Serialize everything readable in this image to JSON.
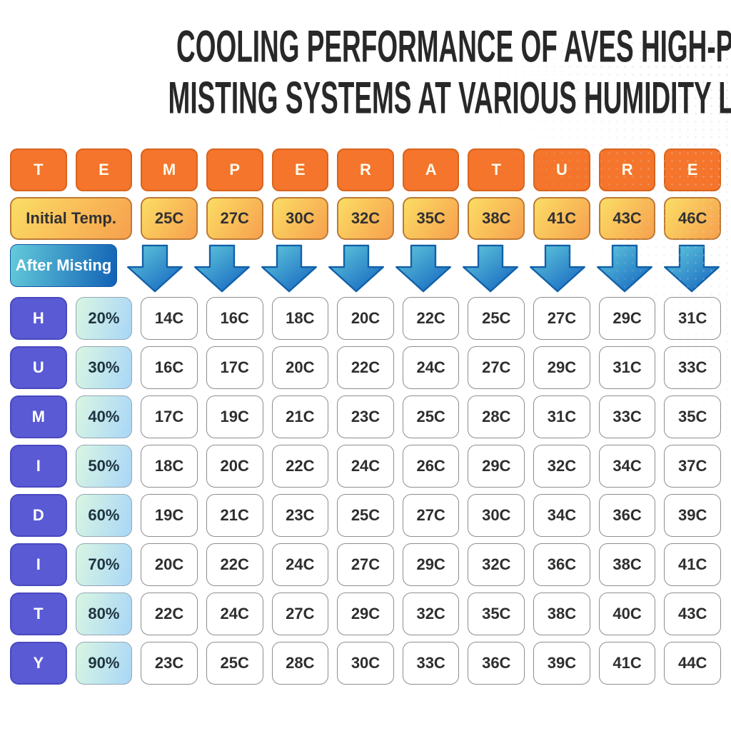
{
  "title": {
    "line1": "COOLING PERFORMANCE OF AVES HIGH-PRESSURE",
    "line2": "MISTING SYSTEMS AT VARIOUS HUMIDITY LEVELS"
  },
  "temperature_letters": [
    "T",
    "E",
    "M",
    "P",
    "E",
    "R",
    "A",
    "T",
    "U",
    "R",
    "E"
  ],
  "humidity_letters": [
    "H",
    "U",
    "M",
    "I",
    "D",
    "I",
    "T",
    "Y"
  ],
  "labels": {
    "initial_temp": "Initial Temp.",
    "after_misting": "After Misting"
  },
  "initial_temps": [
    "25C",
    "27C",
    "30C",
    "32C",
    "35C",
    "38C",
    "41C",
    "43C",
    "46C"
  ],
  "icons": {
    "down_arrow": "down-arrow-icon"
  },
  "colors": {
    "title_text": "#282828",
    "orange_header": "#f4752b",
    "warm_gradient_start": "#fbdd64",
    "warm_gradient_end": "#f7a04e",
    "mist_gradient_start": "#64cbda",
    "mist_gradient_end": "#1161b5",
    "arrow_gradient_start": "#62cbdc",
    "arrow_gradient_end": "#1565c0",
    "humidity_purple": "#5a5ad5",
    "pct_gradient_start": "#d9f6e2",
    "pct_gradient_end": "#a9d6f7",
    "cell_border": "#8e8e8e"
  },
  "chart_data": {
    "type": "table",
    "title": "Cooling Performance of AVES High-Pressure Misting Systems at Various Humidity Levels",
    "column_header_label": "Initial Temp.",
    "row_header_label": "After Misting",
    "columns": [
      "25C",
      "27C",
      "30C",
      "32C",
      "35C",
      "38C",
      "41C",
      "43C",
      "46C"
    ],
    "rows": [
      {
        "humidity": "20%",
        "values": [
          "14C",
          "16C",
          "18C",
          "20C",
          "22C",
          "25C",
          "27C",
          "29C",
          "31C"
        ]
      },
      {
        "humidity": "30%",
        "values": [
          "16C",
          "17C",
          "20C",
          "22C",
          "24C",
          "27C",
          "29C",
          "31C",
          "33C"
        ]
      },
      {
        "humidity": "40%",
        "values": [
          "17C",
          "19C",
          "21C",
          "23C",
          "25C",
          "28C",
          "31C",
          "33C",
          "35C"
        ]
      },
      {
        "humidity": "50%",
        "values": [
          "18C",
          "20C",
          "22C",
          "24C",
          "26C",
          "29C",
          "32C",
          "34C",
          "37C"
        ]
      },
      {
        "humidity": "60%",
        "values": [
          "19C",
          "21C",
          "23C",
          "25C",
          "27C",
          "30C",
          "34C",
          "36C",
          "39C"
        ]
      },
      {
        "humidity": "70%",
        "values": [
          "20C",
          "22C",
          "24C",
          "27C",
          "29C",
          "32C",
          "36C",
          "38C",
          "41C"
        ]
      },
      {
        "humidity": "80%",
        "values": [
          "22C",
          "24C",
          "27C",
          "29C",
          "32C",
          "35C",
          "38C",
          "40C",
          "43C"
        ]
      },
      {
        "humidity": "90%",
        "values": [
          "23C",
          "25C",
          "28C",
          "30C",
          "33C",
          "36C",
          "39C",
          "41C",
          "44C"
        ]
      }
    ]
  }
}
